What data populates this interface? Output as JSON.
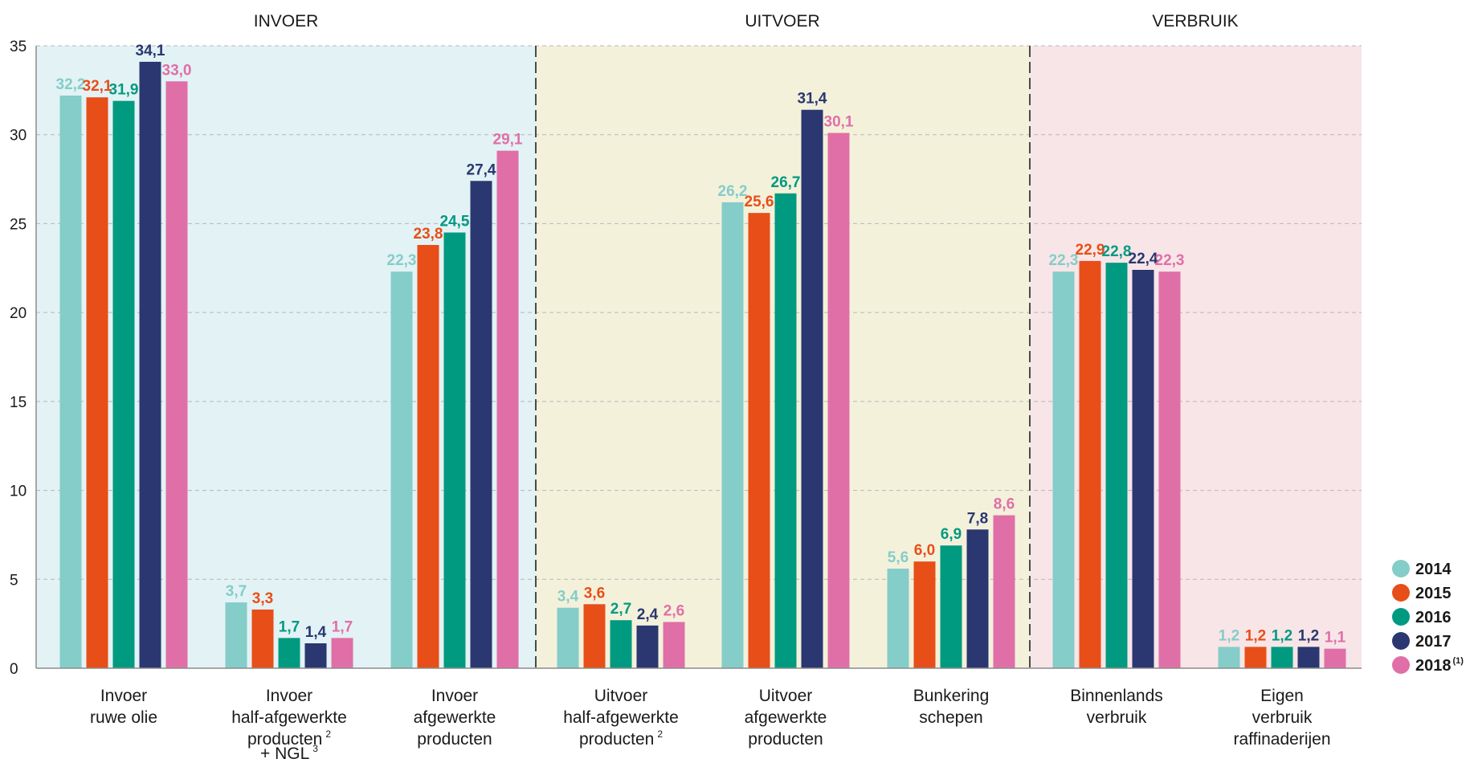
{
  "chart_data": {
    "type": "bar",
    "sections": [
      {
        "title": "INVOER",
        "color": "#e3f2f5"
      },
      {
        "title": "UITVOER",
        "color": "#f4f1db"
      },
      {
        "title": "VERBRUIK",
        "color": "#f8e5e7"
      }
    ],
    "categories": [
      {
        "lines": [
          "Invoer",
          "ruwe olie"
        ],
        "section": 0
      },
      {
        "lines": [
          "Invoer",
          "half-afgewerkte",
          "producten ^2",
          "+ NGL ^3"
        ],
        "section": 0
      },
      {
        "lines": [
          "Invoer",
          "afgewerkte",
          "producten"
        ],
        "section": 0
      },
      {
        "lines": [
          "Uitvoer",
          "half-afgewerkte",
          "producten ^2"
        ],
        "section": 1
      },
      {
        "lines": [
          "Uitvoer",
          "afgewerkte",
          "producten"
        ],
        "section": 1
      },
      {
        "lines": [
          "Bunkering",
          "schepen"
        ],
        "section": 1
      },
      {
        "lines": [
          "Binnenlands",
          "verbruik"
        ],
        "section": 2
      },
      {
        "lines": [
          "Eigen",
          "verbruik",
          "raffinaderijen"
        ],
        "section": 2
      }
    ],
    "series": [
      {
        "name": "2014",
        "sup": "",
        "color": "#84cdc9",
        "values": [
          32.2,
          3.7,
          22.3,
          3.4,
          26.2,
          5.6,
          22.3,
          1.2
        ],
        "labels": [
          "32,2",
          "3,7",
          "22,3",
          "3,4",
          "26,2",
          "5,6",
          "22,3",
          "1,2"
        ]
      },
      {
        "name": "2015",
        "sup": "",
        "color": "#e84e17",
        "values": [
          32.1,
          3.3,
          23.8,
          3.6,
          25.6,
          6.0,
          22.9,
          1.2
        ],
        "labels": [
          "32,1",
          "3,3",
          "23,8",
          "3,6",
          "25,6",
          "6,0",
          "22,9",
          "1,2"
        ]
      },
      {
        "name": "2016",
        "sup": "",
        "color": "#009a80",
        "values": [
          31.9,
          1.7,
          24.5,
          2.7,
          26.7,
          6.9,
          22.8,
          1.2
        ],
        "labels": [
          "31,9",
          "1,7",
          "24,5",
          "2,7",
          "26,7",
          "6,9",
          "22,8",
          "1,2"
        ]
      },
      {
        "name": "2017",
        "sup": "",
        "color": "#2a3770",
        "values": [
          34.1,
          1.4,
          27.4,
          2.4,
          31.4,
          7.8,
          22.4,
          1.2
        ],
        "labels": [
          "34,1",
          "1,4",
          "27,4",
          "2,4",
          "31,4",
          "7,8",
          "22,4",
          "1,2"
        ]
      },
      {
        "name": "2018",
        "sup": "(1)",
        "color": "#e06fa8",
        "values": [
          33.0,
          1.7,
          29.1,
          2.6,
          30.1,
          8.6,
          22.3,
          1.1
        ],
        "labels": [
          "33,0",
          "1,7",
          "29,1",
          "2,6",
          "30,1",
          "8,6",
          "22,3",
          "1,1"
        ]
      }
    ],
    "yticks": [
      "0",
      "5",
      "10",
      "15",
      "20",
      "25",
      "30",
      "35"
    ],
    "ylim": [
      0,
      35
    ],
    "grid": true,
    "legend": "right",
    "axis_color": "#8c8c8c",
    "grid_color": "#b8b8b8"
  }
}
